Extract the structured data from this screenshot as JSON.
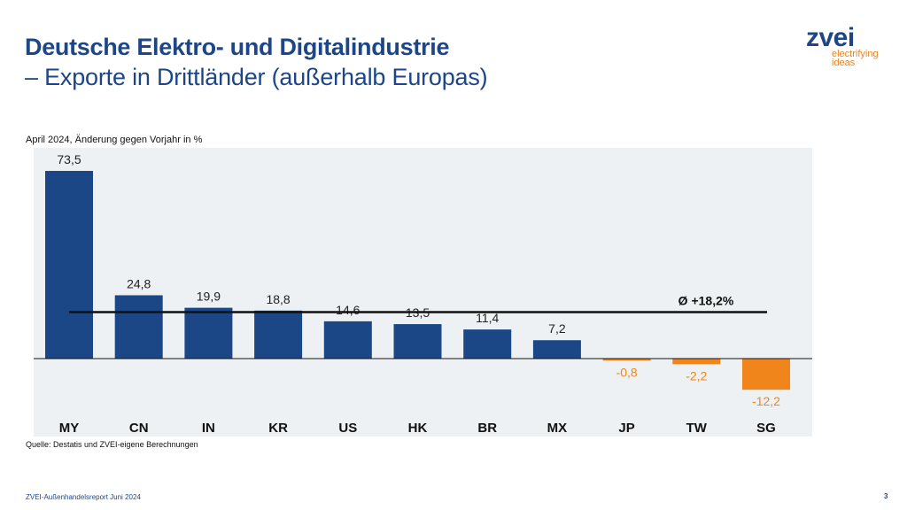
{
  "title": "Deutsche Elektro- und Digitalindustrie",
  "subtitle": "– Exporte in Drittländer (außerhalb Europas)",
  "logo": {
    "name": "zvei",
    "tagline1": "electrifying",
    "tagline2": "ideas"
  },
  "footer": "ZVEI-Außenhandelsreport Juni 2024",
  "page_number": "3",
  "colors": {
    "positive": "#1b4787",
    "negative": "#f0851c",
    "plot_bg": "#edf1f3",
    "title": "#1d4689"
  },
  "chart_data": {
    "type": "bar",
    "note": "April 2024, Änderung gegen Vorjahr in %",
    "source": "Quelle: Destatis und ZVEI-eigene Berechnungen",
    "categories": [
      "MY",
      "CN",
      "IN",
      "KR",
      "US",
      "HK",
      "BR",
      "MX",
      "JP",
      "TW",
      "SG"
    ],
    "values": [
      73.5,
      24.8,
      19.9,
      18.8,
      14.6,
      13.5,
      11.4,
      7.2,
      -0.8,
      -2.2,
      -12.2
    ],
    "value_labels": [
      "73,5",
      "24,8",
      "19,9",
      "18,8",
      "14,6",
      "13,5",
      "11,4",
      "7,2",
      "-0,8",
      "-2,2",
      "-12,2"
    ],
    "average": {
      "value": 18.2,
      "label": "Ø +18,2%"
    },
    "grid": false
  }
}
